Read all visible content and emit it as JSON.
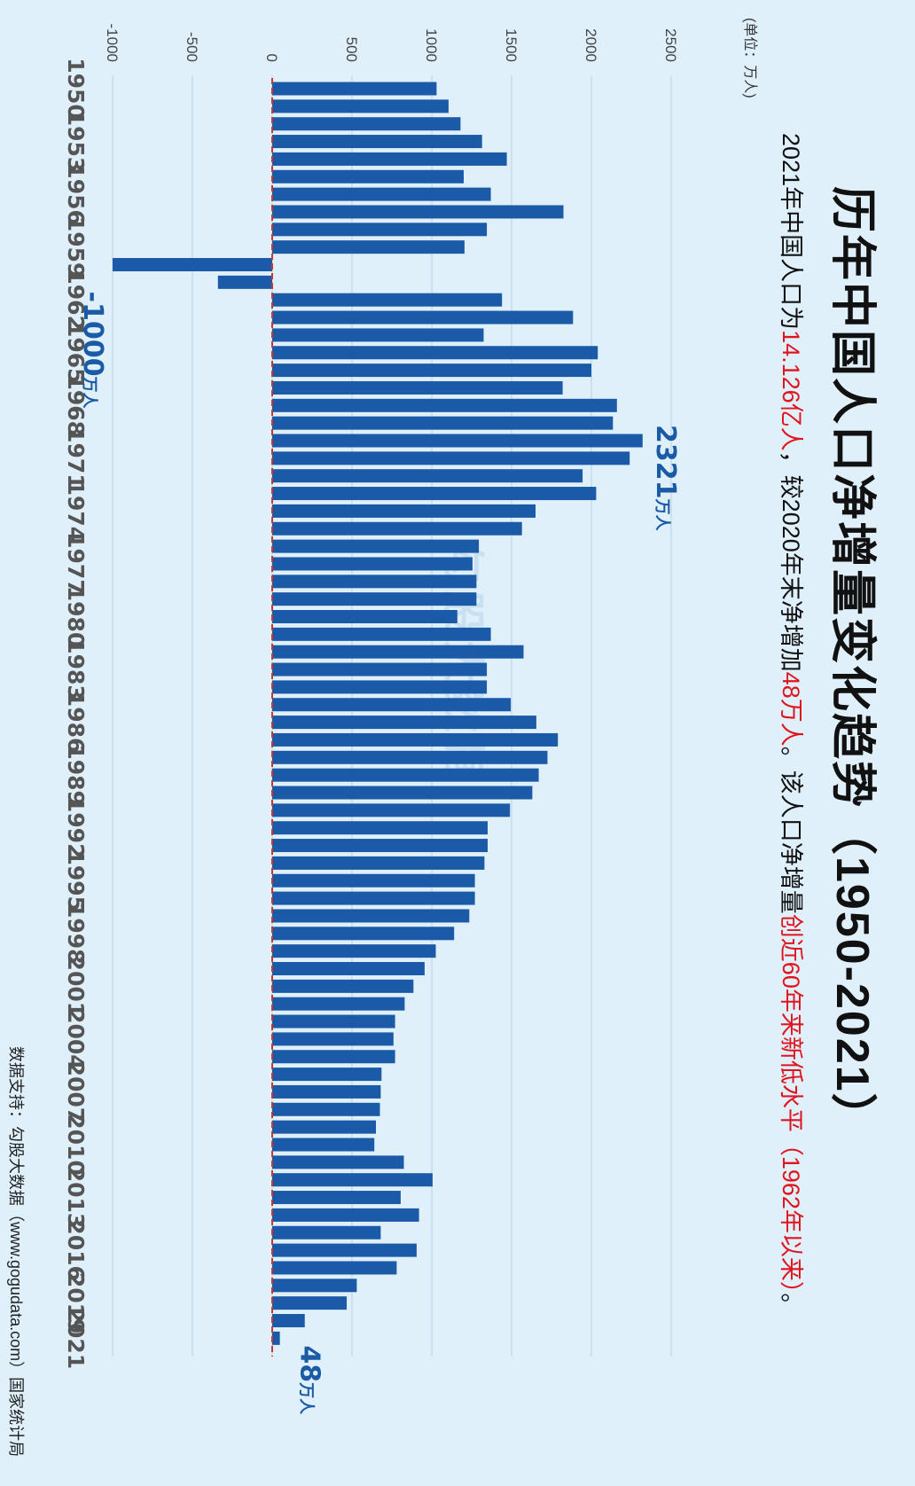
{
  "title": "历年中国人口净增量变化趋势（1950-2021）",
  "subtitle": {
    "p1": "2021年中国人口为",
    "r1": "14.126亿人",
    "p2": "，较2020年末净增加",
    "r2": "48万人",
    "p3": "。该人口净增量",
    "r3": "创近60年来新低水平（1962年以来）",
    "p4": "。"
  },
  "unit_label": "(单位：万人)",
  "source": "数据支持：勾股大数据（www.gogudata.com）国家统计局",
  "watermark": "勾股大数据",
  "colors": {
    "bar": "#1a5aa6",
    "zero_line": "#d0342c",
    "annotation": "#1a5aa6",
    "grid": "#b9d2e6"
  },
  "chart_data": {
    "type": "bar",
    "title": "历年中国人口净增量变化趋势（1950-2021）",
    "xlabel": "",
    "ylabel": "万人",
    "ylim": [
      -1000,
      2500
    ],
    "yticks": [
      -1000,
      -500,
      0,
      500,
      1000,
      1500,
      2000,
      2500
    ],
    "tick_years": [
      1950,
      1953,
      1956,
      1959,
      1962,
      1965,
      1968,
      1971,
      1974,
      1977,
      1980,
      1983,
      1986,
      1989,
      1992,
      1995,
      1998,
      2001,
      2004,
      2007,
      2010,
      2013,
      2016,
      2019,
      2021
    ],
    "categories": [
      1950,
      1951,
      1952,
      1953,
      1954,
      1955,
      1956,
      1957,
      1958,
      1959,
      1960,
      1961,
      1962,
      1963,
      1964,
      1965,
      1966,
      1967,
      1968,
      1969,
      1970,
      1971,
      1972,
      1973,
      1974,
      1975,
      1976,
      1977,
      1978,
      1979,
      1980,
      1981,
      1982,
      1983,
      1984,
      1985,
      1986,
      1987,
      1988,
      1989,
      1990,
      1991,
      1992,
      1993,
      1994,
      1995,
      1996,
      1997,
      1998,
      1999,
      2000,
      2001,
      2002,
      2003,
      2004,
      2005,
      2006,
      2007,
      2008,
      2009,
      2010,
      2011,
      2012,
      2013,
      2014,
      2015,
      2016,
      2017,
      2018,
      2019,
      2020,
      2021
    ],
    "values": [
      1030,
      1105,
      1180,
      1315,
      1470,
      1200,
      1370,
      1825,
      1345,
      1205,
      -1000,
      -340,
      1440,
      1885,
      1325,
      2040,
      2000,
      1820,
      2160,
      2135,
      2321,
      2240,
      1945,
      2030,
      1650,
      1565,
      1295,
      1255,
      1280,
      1280,
      1160,
      1370,
      1575,
      1345,
      1345,
      1495,
      1655,
      1790,
      1725,
      1670,
      1630,
      1490,
      1350,
      1350,
      1330,
      1270,
      1270,
      1235,
      1140,
      1025,
      955,
      885,
      830,
      770,
      760,
      770,
      685,
      680,
      675,
      650,
      640,
      825,
      1005,
      805,
      920,
      680,
      905,
      780,
      530,
      467,
      204,
      48
    ],
    "annotations": [
      {
        "value_label": "2321",
        "unit": "万人",
        "year": 1970
      },
      {
        "value_label": "-1000",
        "unit": "万人",
        "year": 1960
      },
      {
        "value_label": "48",
        "unit": "万人",
        "year": 2021
      }
    ]
  }
}
